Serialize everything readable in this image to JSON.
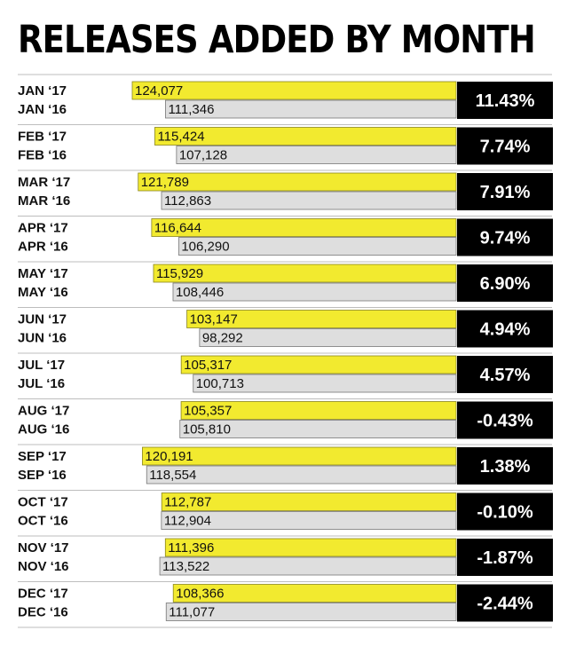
{
  "chart_data": {
    "type": "bar",
    "title": "RELEASES ADDED BY MONTH",
    "series_colors": {
      "current": "#f2ea2f",
      "previous": "#dedede",
      "change_box": "#000000"
    },
    "series": [
      {
        "labels": [
          "JAN ‘17",
          "FEB ‘17",
          "MAR ‘17",
          "APR ‘17",
          "MAY ‘17",
          "JUN ‘17",
          "JUL ‘17",
          "AUG ‘17",
          "SEP ‘17",
          "OCT ‘17",
          "NOV ‘17",
          "DEC ‘17"
        ],
        "values": [
          124077,
          115424,
          121789,
          116644,
          115929,
          103147,
          105317,
          105357,
          120191,
          112787,
          111396,
          108366
        ]
      },
      {
        "labels": [
          "JAN ‘16",
          "FEB ‘16",
          "MAR ‘16",
          "APR ‘16",
          "MAY ‘16",
          "JUN ‘16",
          "JUL ‘16",
          "AUG ‘16",
          "SEP ‘16",
          "OCT ‘16",
          "NOV ‘16",
          "DEC ‘16"
        ],
        "values": [
          111346,
          107128,
          112863,
          106290,
          108446,
          98292,
          100713,
          105810,
          118554,
          112904,
          113522,
          111077
        ]
      }
    ],
    "value_labels": {
      "current": [
        "124,077",
        "115,424",
        "121,789",
        "116,644",
        "115,929",
        "103,147",
        "105,317",
        "105,357",
        "120,191",
        "112,787",
        "111,396",
        "108,366"
      ],
      "previous": [
        "111,346",
        "107,128",
        "112,863",
        "106,290",
        "108,446",
        "98,292",
        "100,713",
        "105,810",
        "118,554",
        "112,904",
        "113,522",
        "111,077"
      ]
    },
    "change_labels": [
      "11.43%",
      "7.74%",
      "7.91%",
      "9.74%",
      "6.90%",
      "4.94%",
      "4.57%",
      "-0.43%",
      "1.38%",
      "-0.10%",
      "-1.87%",
      "-2.44%"
    ]
  }
}
